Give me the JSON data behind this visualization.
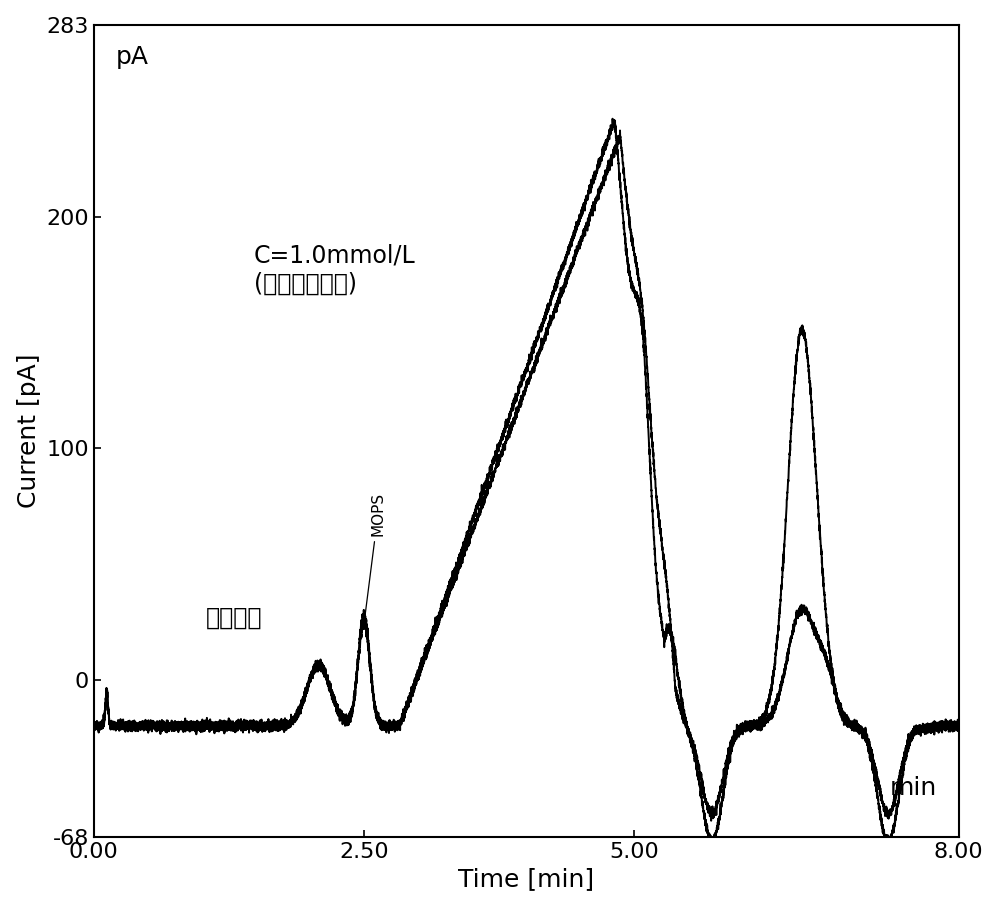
{
  "xlabel": "Time [min]",
  "ylabel": "Current [pA]",
  "xlim": [
    0.0,
    8.0
  ],
  "ylim": [
    -68,
    283
  ],
  "yticks": [
    -68,
    0,
    100,
    200,
    283
  ],
  "xticks": [
    0.0,
    2.5,
    5.0,
    8.0
  ],
  "xtick_labels": [
    "0.00",
    "2.50",
    "5.00",
    "8.00"
  ],
  "ytick_labels": [
    "-68",
    "0",
    "100",
    "200",
    "283"
  ],
  "pa_label": "pA",
  "min_label": "min",
  "annotation_mops": "MOPS",
  "annotation_c": "C=1.0mmol/L\n(空白对照稀释)",
  "annotation_blank": "空白对照",
  "background_color": "#ffffff",
  "line_color": "#000000",
  "line_width": 1.4,
  "font_size_labels": 18,
  "font_size_ticks": 16,
  "font_size_annotation": 17
}
